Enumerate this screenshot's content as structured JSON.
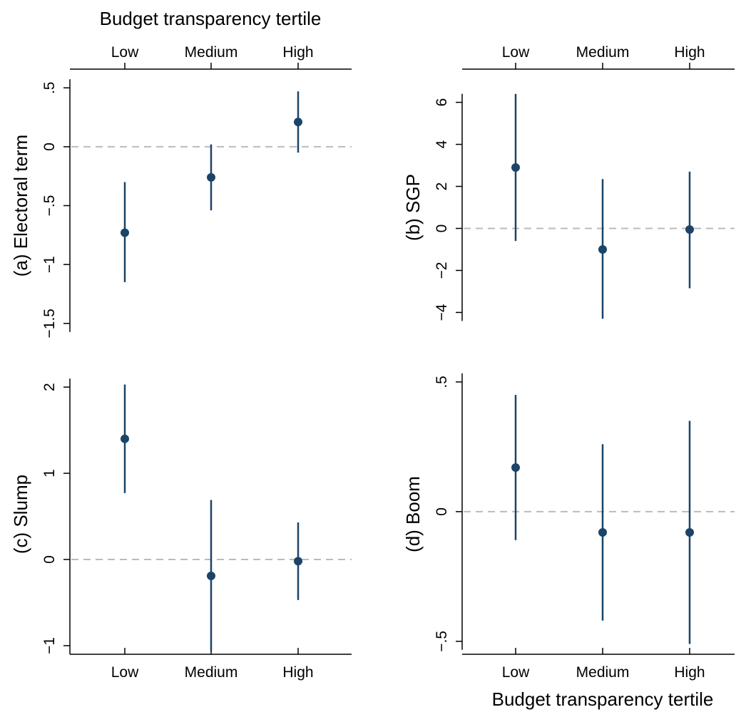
{
  "figure": {
    "xlabel_top": "Budget transparency tertile",
    "xlabel_bottom": "Budget transparency tertile"
  },
  "colors": {
    "marker": "#1b4468",
    "axis": "#000000",
    "zero_line": "#bbbbbb"
  },
  "chart_data": [
    {
      "type": "scatter",
      "panel": "a",
      "ylabel": "(a) Electoral term",
      "categories": [
        "Low",
        "Medium",
        "High"
      ],
      "x_axis_position": "top",
      "values": [
        -0.73,
        -0.26,
        0.21
      ],
      "ci_low": [
        -1.15,
        -0.54,
        -0.05
      ],
      "ci_high": [
        -0.3,
        0.02,
        0.47
      ],
      "ylim": [
        -1.55,
        0.55
      ],
      "yticks": [
        -1.5,
        -1,
        -0.5,
        0,
        0.5
      ],
      "ytick_labels": [
        "−1.5",
        "−1",
        "−.5",
        "0",
        ".5"
      ],
      "zero_line": true
    },
    {
      "type": "scatter",
      "panel": "b",
      "ylabel": "(b) SGP",
      "categories": [
        "Low",
        "Medium",
        "High"
      ],
      "x_axis_position": "top",
      "values": [
        2.9,
        -1.0,
        -0.05
      ],
      "ci_low": [
        -0.6,
        -4.3,
        -2.85
      ],
      "ci_high": [
        6.4,
        2.35,
        2.7
      ],
      "ylim": [
        -4.8,
        6.8
      ],
      "yticks": [
        -4,
        -2,
        0,
        2,
        4,
        6
      ],
      "ytick_labels": [
        "−4",
        "−2",
        "0",
        "2",
        "4",
        "6"
      ],
      "zero_line": true
    },
    {
      "type": "scatter",
      "panel": "c",
      "ylabel": "(c) Slump",
      "categories": [
        "Low",
        "Medium",
        "High"
      ],
      "x_axis_position": "bottom",
      "values": [
        1.4,
        -0.19,
        -0.02
      ],
      "ci_low": [
        0.77,
        -1.07,
        -0.47
      ],
      "ci_high": [
        2.03,
        0.69,
        0.43
      ],
      "ylim": [
        -1.1,
        2.15
      ],
      "yticks": [
        -1,
        0,
        1,
        2
      ],
      "ytick_labels": [
        "−1",
        "0",
        "1",
        "2"
      ],
      "zero_line": true
    },
    {
      "type": "scatter",
      "panel": "d",
      "ylabel": "(d) Boom",
      "categories": [
        "Low",
        "Medium",
        "High"
      ],
      "x_axis_position": "bottom",
      "values": [
        0.17,
        -0.08,
        -0.08
      ],
      "ci_low": [
        -0.11,
        -0.42,
        -0.51
      ],
      "ci_high": [
        0.45,
        0.26,
        0.35
      ],
      "ylim": [
        -0.55,
        0.53
      ],
      "yticks": [
        -0.5,
        0,
        0.5
      ],
      "ytick_labels": [
        "−.5",
        "0",
        ".5"
      ],
      "zero_line": true
    }
  ]
}
